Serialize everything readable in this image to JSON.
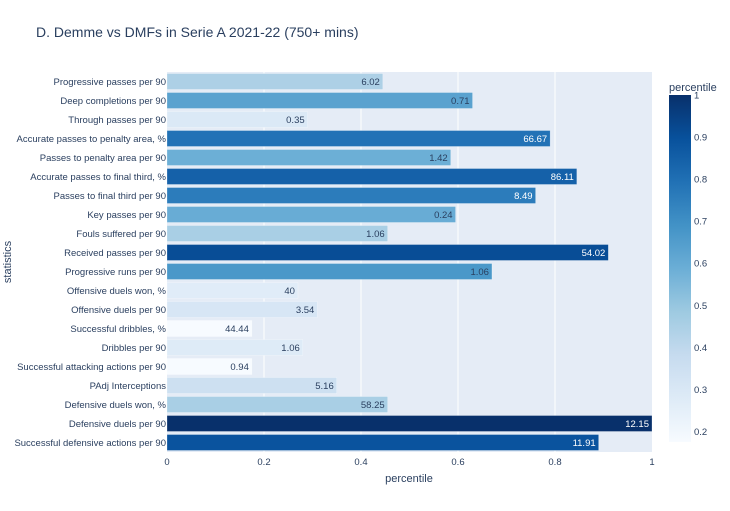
{
  "chart_data": {
    "type": "bar",
    "orientation": "horizontal",
    "title": "D. Demme vs DMFs in Serie A 2021-22 (750+ mins)",
    "xlabel": "percentile",
    "ylabel": "statistics",
    "xlim": [
      0,
      1
    ],
    "x_ticks": [
      "0",
      "0.2",
      "0.4",
      "0.6",
      "0.8",
      "1"
    ],
    "grid": true,
    "categories": [
      "Progressive passes per 90",
      "Deep completions per 90",
      "Through passes per 90",
      "Accurate passes to penalty area, %",
      "Passes to penalty area per 90",
      "Accurate passes to final third, %",
      "Passes to final third per 90",
      "Key passes per 90",
      "Fouls suffered per 90",
      "Received passes per 90",
      "Progressive runs per 90",
      "Offensive duels won, %",
      "Offensive duels per 90",
      "Successful dribbles, %",
      "Dribbles per 90",
      "Successful attacking actions per 90",
      "PAdj Interceptions",
      "Defensive duels won, %",
      "Defensive duels per 90",
      "Successful defensive actions per 90"
    ],
    "values": [
      0.445,
      0.63,
      0.29,
      0.79,
      0.585,
      0.845,
      0.76,
      0.595,
      0.455,
      0.91,
      0.67,
      0.27,
      0.31,
      0.175,
      0.28,
      0.175,
      0.35,
      0.455,
      1.0,
      0.89
    ],
    "bar_labels": [
      "6.02",
      "0.71",
      "0.35",
      "66.67",
      "1.42",
      "86.11",
      "8.49",
      "0.24",
      "1.06",
      "54.02",
      "1.06",
      "40",
      "3.54",
      "44.44",
      "1.06",
      "0.94",
      "5.16",
      "58.25",
      "12.15",
      "11.91"
    ],
    "colorscale": "Blues",
    "colorbar": {
      "title": "percentile",
      "range": [
        0.175,
        1
      ],
      "ticks": [
        "1",
        "0.9",
        "0.8",
        "0.7",
        "0.6",
        "0.5",
        "0.4",
        "0.3",
        "0.2"
      ],
      "tick_values": [
        1,
        0.9,
        0.8,
        0.7,
        0.6,
        0.5,
        0.4,
        0.3,
        0.2
      ]
    }
  }
}
